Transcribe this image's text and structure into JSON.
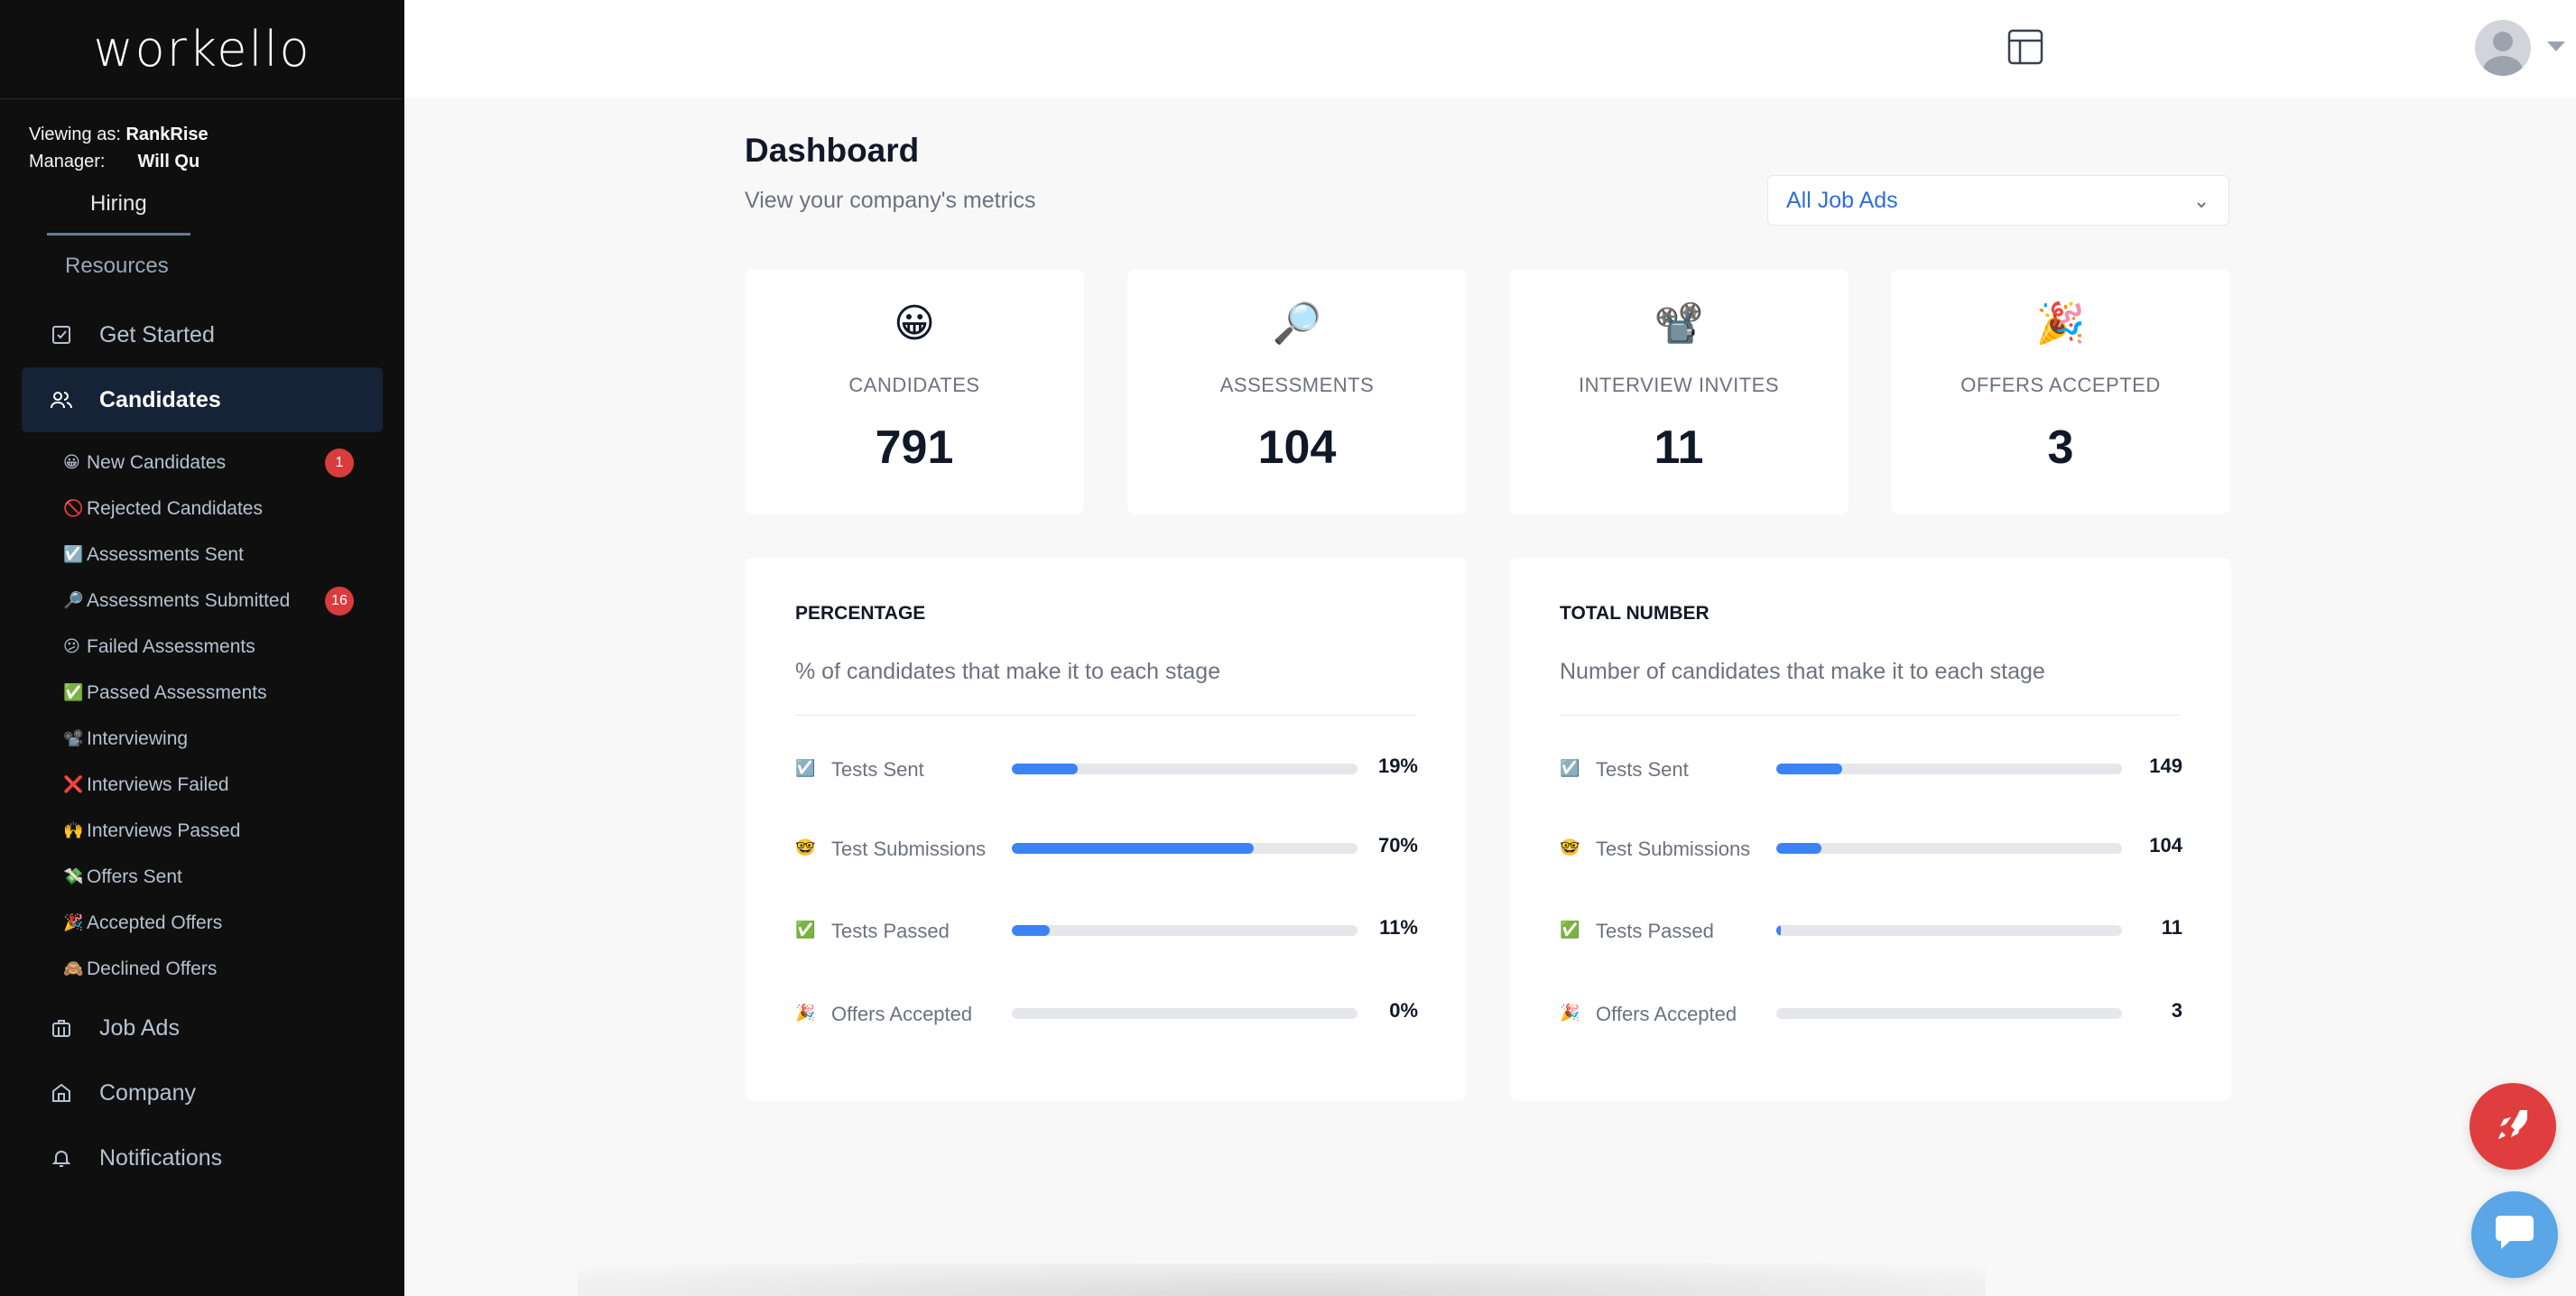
{
  "app": {
    "logo": "workello"
  },
  "sidebar": {
    "viewing_label": "Viewing as:",
    "viewing_value": "RankRise",
    "manager_label": "Manager:",
    "manager_value": "Will Qu",
    "tabs": [
      {
        "label": "Hiring"
      },
      {
        "label": "Resources"
      }
    ],
    "nav": [
      {
        "label": "Get Started",
        "icon": "checkbox-icon"
      },
      {
        "label": "Candidates",
        "icon": "users-icon"
      },
      {
        "label": "Job Ads",
        "icon": "briefcase-icon"
      },
      {
        "label": "Company",
        "icon": "building-icon"
      },
      {
        "label": "Notifications",
        "icon": "bell-icon"
      }
    ],
    "sub_items": [
      {
        "emoji": "😀",
        "label": "New Candidates",
        "badge": "1"
      },
      {
        "emoji": "🚫",
        "label": "Rejected Candidates",
        "badge": ""
      },
      {
        "emoji": "☑️",
        "label": "Assessments Sent",
        "badge": ""
      },
      {
        "emoji": "🔎",
        "label": "Assessments Submitted",
        "badge": "16"
      },
      {
        "emoji": "😕",
        "label": "Failed Assessments",
        "badge": ""
      },
      {
        "emoji": "✅",
        "label": "Passed Assessments",
        "badge": ""
      },
      {
        "emoji": "📽️",
        "label": "Interviewing",
        "badge": ""
      },
      {
        "emoji": "❌",
        "label": "Interviews Failed",
        "badge": ""
      },
      {
        "emoji": "🙌",
        "label": "Interviews Passed",
        "badge": ""
      },
      {
        "emoji": "💸",
        "label": "Offers Sent",
        "badge": ""
      },
      {
        "emoji": "🎉",
        "label": "Accepted Offers",
        "badge": ""
      },
      {
        "emoji": "🙈",
        "label": "Declined Offers",
        "badge": ""
      }
    ]
  },
  "header": {
    "title": "Dashboard",
    "subtitle": "View your company's metrics",
    "filter_value": "All Job Ads"
  },
  "stats": [
    {
      "emoji": "😀",
      "label": "CANDIDATES",
      "value": "791"
    },
    {
      "emoji": "🔎",
      "label": "ASSESSMENTS",
      "value": "104"
    },
    {
      "emoji": "📽️",
      "label": "INTERVIEW INVITES",
      "value": "11"
    },
    {
      "emoji": "🎉",
      "label": "OFFERS ACCEPTED",
      "value": "3"
    }
  ],
  "percentage_panel": {
    "title": "PERCENTAGE",
    "subtitle": "% of candidates that make it to each stage",
    "rows": [
      {
        "emoji": "☑️",
        "label": "Tests Sent",
        "value": "19%",
        "fraction": 0.19
      },
      {
        "emoji": "🤓",
        "label": "Test Submissions",
        "value": "70%",
        "fraction": 0.7
      },
      {
        "emoji": "✅",
        "label": "Tests Passed",
        "value": "11%",
        "fraction": 0.11
      },
      {
        "emoji": "🎉",
        "label": "Offers Accepted",
        "value": "0%",
        "fraction": 0.0
      }
    ]
  },
  "total_panel": {
    "title": "TOTAL NUMBER",
    "subtitle": "Number of candidates that make it to each stage",
    "rows": [
      {
        "emoji": "☑️",
        "label": "Tests Sent",
        "value": "149",
        "fraction": 0.19
      },
      {
        "emoji": "🤓",
        "label": "Test Submissions",
        "value": "104",
        "fraction": 0.13
      },
      {
        "emoji": "✅",
        "label": "Tests Passed",
        "value": "11",
        "fraction": 0.014
      },
      {
        "emoji": "🎉",
        "label": "Offers Accepted",
        "value": "3",
        "fraction": 0.0
      }
    ]
  },
  "colors": {
    "sidebar_bg": "#0f0f10",
    "active_nav": "#162235",
    "accent": "#3b82f6",
    "badge": "#d93c3c",
    "rocket": "#e03e3e",
    "chat": "#5aa6e6"
  }
}
